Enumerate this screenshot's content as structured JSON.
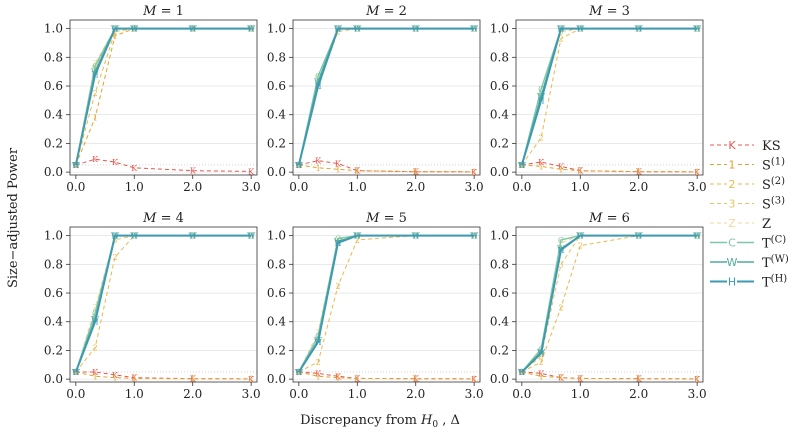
{
  "chart_data": {
    "type": "line",
    "xlabel_prefix": "Discrepancy from ",
    "xlabel_symbol": "H",
    "xlabel_subscript": "0",
    "xlabel_suffix": " , Δ",
    "ylabel": "Size−adjusted Power",
    "x": [
      0.0,
      0.33,
      0.67,
      1.0,
      2.0,
      3.0
    ],
    "xlim": [
      -0.1,
      3.1
    ],
    "ylim": [
      -0.02,
      1.06
    ],
    "xticks": [
      0.0,
      1.0,
      2.0,
      3.0
    ],
    "xtick_labels": [
      "0.0",
      "1.0",
      "2.0",
      "3.0"
    ],
    "yticks": [
      0.0,
      0.2,
      0.4,
      0.6,
      0.8,
      1.0
    ],
    "ytick_labels": [
      "0.0",
      "0.2",
      "0.4",
      "0.6",
      "0.8",
      "1.0"
    ],
    "reference_line": 0.05,
    "legend_position": "right",
    "legend": [
      {
        "id": "KS",
        "marker": "K",
        "text": "KS",
        "sup": "",
        "color": "#e8554e",
        "width": 1,
        "dash": "4,3"
      },
      {
        "id": "S1",
        "marker": "1",
        "text": "S",
        "sup": "(1)",
        "color": "#e3a32c",
        "width": 1,
        "dash": "4,3"
      },
      {
        "id": "S2",
        "marker": "2",
        "text": "S",
        "sup": "(2)",
        "color": "#ecb84a",
        "width": 1,
        "dash": "4,3"
      },
      {
        "id": "S3",
        "marker": "3",
        "text": "S",
        "sup": "(3)",
        "color": "#e9c466",
        "width": 1,
        "dash": "4,3"
      },
      {
        "id": "Z",
        "marker": "Z",
        "text": "Z",
        "sup": "",
        "color": "#f0d9a0",
        "width": 1,
        "dash": "4,3"
      },
      {
        "id": "TC",
        "marker": "C",
        "text": "T",
        "sup": "(C)",
        "color": "#7cc7a4",
        "width": 1.4,
        "dash": ""
      },
      {
        "id": "TW",
        "marker": "W",
        "text": "T",
        "sup": "(W)",
        "color": "#52ab9d",
        "width": 1.4,
        "dash": ""
      },
      {
        "id": "TH",
        "marker": "H",
        "text": "T",
        "sup": "(H)",
        "color": "#3d9ab0",
        "width": 2,
        "dash": ""
      }
    ],
    "panels": [
      {
        "title_var": "M",
        "title_eq": " = 1",
        "series": {
          "KS": [
            0.05,
            0.09,
            0.07,
            0.03,
            0.01,
            0.005
          ],
          "S1": [
            0.05,
            0.38,
            0.95,
            1.0,
            1.0,
            1.0
          ],
          "S2": [
            0.05,
            0.55,
            0.98,
            1.0,
            1.0,
            1.0
          ],
          "S3": [
            0.05,
            0.72,
            1.0,
            1.0,
            1.0,
            1.0
          ],
          "Z": [
            0.05,
            0.76,
            1.0,
            1.0,
            1.0,
            1.0
          ],
          "TC": [
            0.05,
            0.74,
            1.0,
            1.0,
            1.0,
            1.0
          ],
          "TW": [
            0.05,
            0.7,
            1.0,
            1.0,
            1.0,
            1.0
          ],
          "TH": [
            0.05,
            0.68,
            1.0,
            1.0,
            1.0,
            1.0
          ]
        }
      },
      {
        "title_var": "M",
        "title_eq": " = 2",
        "series": {
          "KS": [
            0.05,
            0.08,
            0.06,
            0.01,
            0.003,
            0.002
          ],
          "S1": [
            0.05,
            0.03,
            0.02,
            0.01,
            0.003,
            0.002
          ],
          "S2": [
            0.05,
            0.6,
            0.98,
            1.0,
            1.0,
            1.0
          ],
          "S3": [
            0.05,
            0.62,
            1.0,
            1.0,
            1.0,
            1.0
          ],
          "Z": [
            0.05,
            0.66,
            1.0,
            1.0,
            1.0,
            1.0
          ],
          "TC": [
            0.05,
            0.67,
            1.0,
            1.0,
            1.0,
            1.0
          ],
          "TW": [
            0.05,
            0.63,
            1.0,
            1.0,
            1.0,
            1.0
          ],
          "TH": [
            0.05,
            0.6,
            1.0,
            1.0,
            1.0,
            1.0
          ]
        }
      },
      {
        "title_var": "M",
        "title_eq": " = 3",
        "series": {
          "KS": [
            0.05,
            0.07,
            0.04,
            0.01,
            0.003,
            0.002
          ],
          "S1": [
            0.05,
            0.04,
            0.02,
            0.01,
            0.003,
            0.002
          ],
          "S2": [
            0.05,
            0.24,
            0.93,
            1.0,
            1.0,
            1.0
          ],
          "S3": [
            0.05,
            0.52,
            0.98,
            1.0,
            1.0,
            1.0
          ],
          "Z": [
            0.05,
            0.58,
            1.0,
            1.0,
            1.0,
            1.0
          ],
          "TC": [
            0.05,
            0.58,
            1.0,
            1.0,
            1.0,
            1.0
          ],
          "TW": [
            0.05,
            0.53,
            1.0,
            1.0,
            1.0,
            1.0
          ],
          "TH": [
            0.05,
            0.5,
            1.0,
            1.0,
            1.0,
            1.0
          ]
        }
      },
      {
        "title_var": "M",
        "title_eq": " = 4",
        "series": {
          "KS": [
            0.05,
            0.05,
            0.03,
            0.01,
            0.003,
            0.002
          ],
          "S1": [
            0.05,
            0.02,
            0.01,
            0.005,
            0.003,
            0.002
          ],
          "S2": [
            0.05,
            0.22,
            0.85,
            1.0,
            1.0,
            1.0
          ],
          "S3": [
            0.05,
            0.46,
            0.97,
            1.0,
            1.0,
            1.0
          ],
          "Z": [
            0.05,
            0.5,
            1.0,
            1.0,
            1.0,
            1.0
          ],
          "TC": [
            0.05,
            0.46,
            1.0,
            1.0,
            1.0,
            1.0
          ],
          "TW": [
            0.05,
            0.42,
            1.0,
            1.0,
            1.0,
            1.0
          ],
          "TH": [
            0.05,
            0.4,
            1.0,
            1.0,
            1.0,
            1.0
          ]
        }
      },
      {
        "title_var": "M",
        "title_eq": " = 5",
        "series": {
          "KS": [
            0.05,
            0.04,
            0.02,
            0.005,
            0.003,
            0.002
          ],
          "S1": [
            0.05,
            0.02,
            0.01,
            0.005,
            0.003,
            0.002
          ],
          "S2": [
            0.05,
            0.12,
            0.65,
            0.97,
            1.0,
            1.0
          ],
          "S3": [
            0.05,
            0.3,
            0.95,
            1.0,
            1.0,
            1.0
          ],
          "Z": [
            0.05,
            0.33,
            0.97,
            1.0,
            1.0,
            1.0
          ],
          "TC": [
            0.05,
            0.3,
            0.98,
            1.0,
            1.0,
            1.0
          ],
          "TW": [
            0.05,
            0.27,
            0.96,
            1.0,
            1.0,
            1.0
          ],
          "TH": [
            0.05,
            0.26,
            0.95,
            1.0,
            1.0,
            1.0
          ]
        }
      },
      {
        "title_var": "M",
        "title_eq": " = 6",
        "series": {
          "KS": [
            0.05,
            0.04,
            0.01,
            0.005,
            0.003,
            0.002
          ],
          "S1": [
            0.05,
            0.02,
            0.01,
            0.005,
            0.003,
            0.002
          ],
          "S2": [
            0.05,
            0.12,
            0.5,
            0.93,
            1.0,
            1.0
          ],
          "S3": [
            0.05,
            0.16,
            0.8,
            1.0,
            1.0,
            1.0
          ],
          "Z": [
            0.05,
            0.2,
            0.95,
            1.0,
            1.0,
            1.0
          ],
          "TC": [
            0.05,
            0.21,
            0.97,
            1.0,
            1.0,
            1.0
          ],
          "TW": [
            0.05,
            0.19,
            0.91,
            1.0,
            1.0,
            1.0
          ],
          "TH": [
            0.05,
            0.18,
            0.9,
            1.0,
            1.0,
            1.0
          ]
        }
      }
    ]
  }
}
